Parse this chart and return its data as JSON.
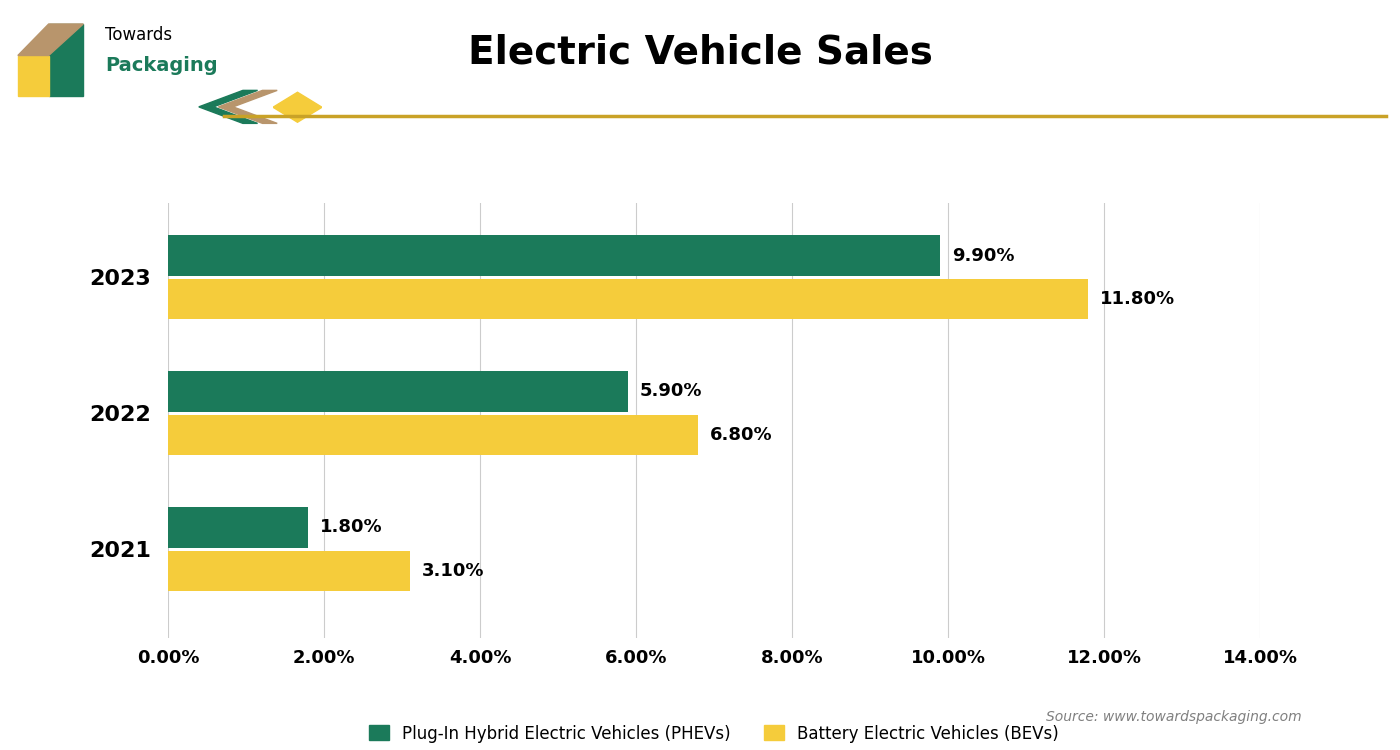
{
  "title": "Electric Vehicle Sales",
  "years": [
    "2023",
    "2022",
    "2021"
  ],
  "phev_values": [
    9.9,
    5.9,
    1.8
  ],
  "bev_values": [
    11.8,
    6.8,
    3.1
  ],
  "phev_color": "#1B7A5A",
  "bev_color": "#F5CC3B",
  "phev_label": "Plug-In Hybrid Electric Vehicles (PHEVs)",
  "bev_label": "Battery Electric Vehicles (BEVs)",
  "xlim": [
    0,
    14
  ],
  "xticks": [
    0,
    2,
    4,
    6,
    8,
    10,
    12,
    14
  ],
  "bar_height": 0.3,
  "bar_gap": 0.02,
  "source_text": "Source: www.towardspackaging.com",
  "title_fontsize": 28,
  "axis_fontsize": 13,
  "label_fontsize": 13,
  "legend_fontsize": 12,
  "source_fontsize": 10,
  "year_fontsize": 16,
  "header_line_color": "#C9A227",
  "grid_color": "#CCCCCC",
  "background_color": "#FFFFFF",
  "logo_green": "#1B7A5A",
  "logo_yellow": "#F5CC3B",
  "logo_tan": "#B8956C"
}
